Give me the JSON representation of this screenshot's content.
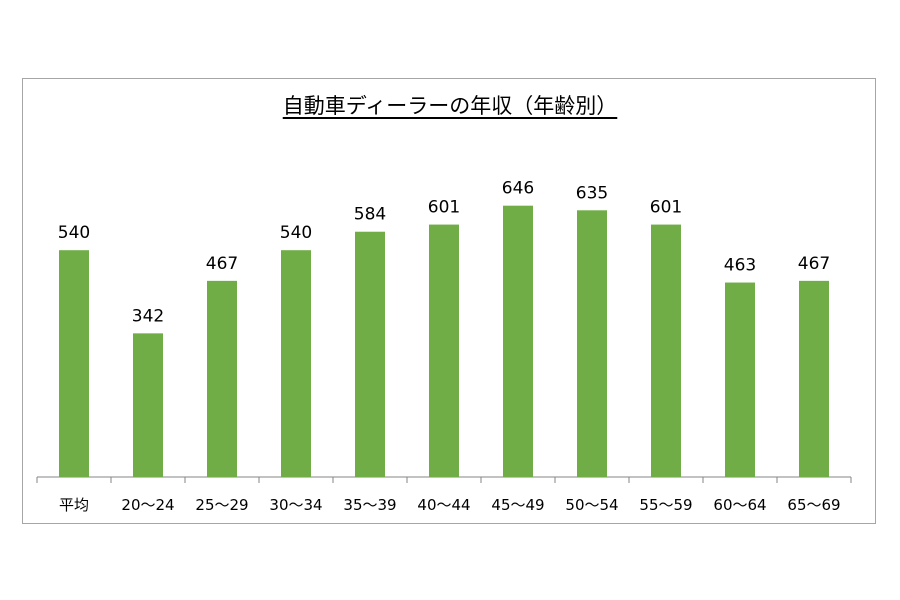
{
  "chart_data": {
    "type": "bar",
    "title": "自動車ディーラーの年収（年齢別）",
    "categories": [
      "平均",
      "20〜24",
      "25〜29",
      "30〜34",
      "35〜39",
      "40〜44",
      "45〜49",
      "50〜54",
      "55〜59",
      "60〜64",
      "65〜69"
    ],
    "values": [
      540,
      342,
      467,
      540,
      584,
      601,
      646,
      635,
      601,
      463,
      467
    ],
    "xlabel": "",
    "ylabel": "",
    "ylim": [
      0,
      646
    ],
    "grid": false,
    "legend": "none",
    "data_labels": true,
    "bar_color": "#70ad47"
  }
}
